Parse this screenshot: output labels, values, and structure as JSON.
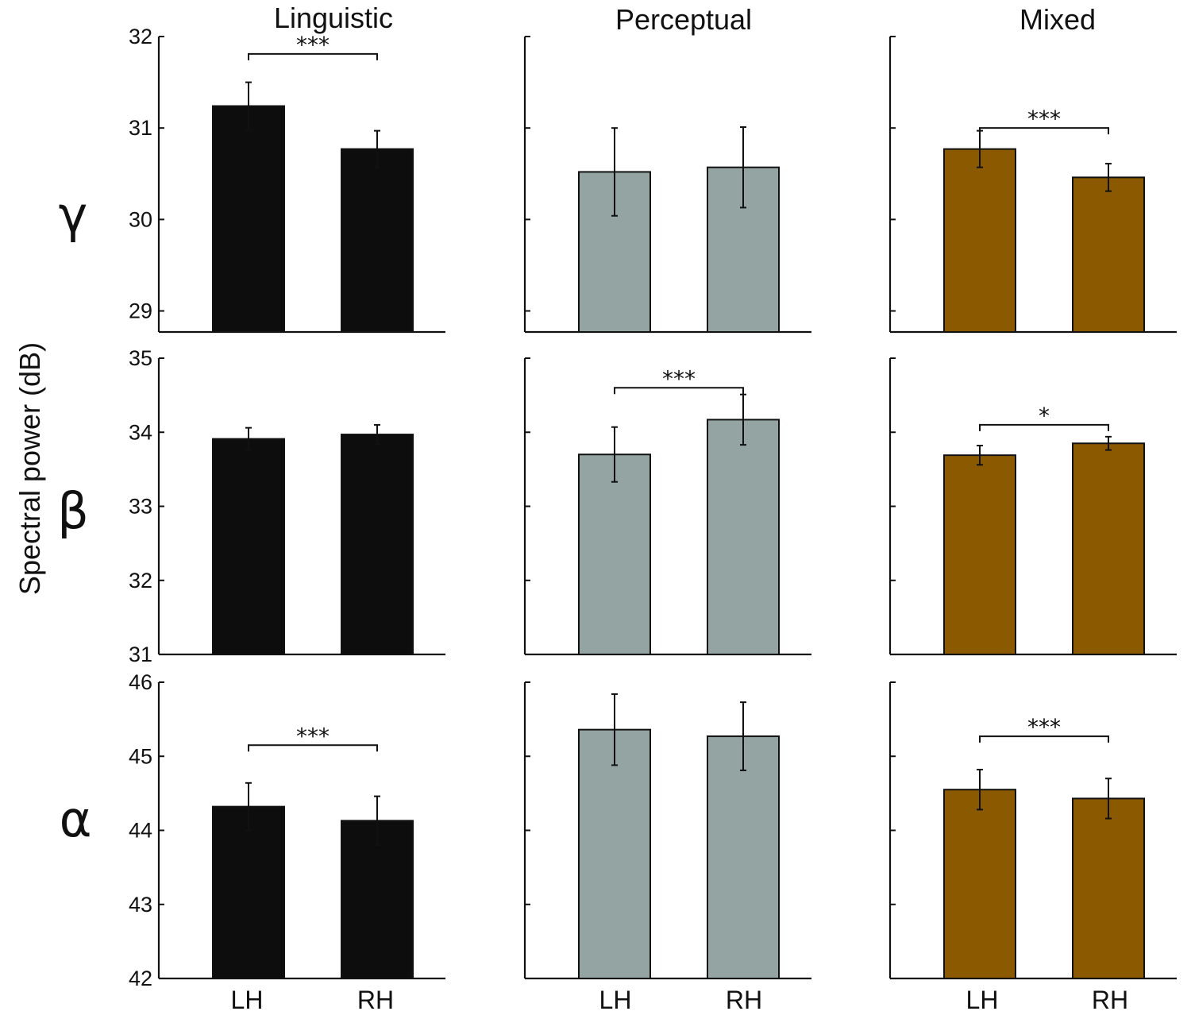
{
  "chart_data": {
    "type": "bar",
    "ylabel": "Spectral power (dB)",
    "columns": [
      "Linguistic",
      "Perceptual",
      "Mixed"
    ],
    "categories": [
      "LH",
      "RH"
    ],
    "colors": {
      "Linguistic": "#0d0d0d",
      "Perceptual": "#93a4a2",
      "Mixed": "#8b5a00"
    },
    "rows": [
      {
        "band": "γ",
        "ylim": [
          28.77,
          32
        ],
        "ticks": [
          29,
          30,
          31,
          32
        ],
        "tick_labels": [
          "29",
          "30",
          "31",
          "32"
        ],
        "panels": [
          {
            "column": "Linguistic",
            "values": [
              31.24,
              30.77
            ],
            "errors": [
              0.26,
              0.2
            ],
            "sig": "***",
            "sig_level": 31.81
          },
          {
            "column": "Perceptual",
            "values": [
              30.52,
              30.57
            ],
            "errors": [
              0.48,
              0.44
            ],
            "sig": "",
            "sig_level": null
          },
          {
            "column": "Mixed",
            "values": [
              30.77,
              30.46
            ],
            "errors": [
              0.2,
              0.15
            ],
            "sig": "***",
            "sig_level": 31.0
          }
        ]
      },
      {
        "band": "β",
        "ylim": [
          31,
          35
        ],
        "ticks": [
          31,
          32,
          33,
          34,
          35
        ],
        "tick_labels": [
          "31",
          "32",
          "33",
          "34",
          "35"
        ],
        "panels": [
          {
            "column": "Linguistic",
            "values": [
              33.91,
              33.97
            ],
            "errors": [
              0.15,
              0.13
            ],
            "sig": "",
            "sig_level": null
          },
          {
            "column": "Perceptual",
            "values": [
              33.7,
              34.17
            ],
            "errors": [
              0.37,
              0.34
            ],
            "sig": "***",
            "sig_level": 34.6
          },
          {
            "column": "Mixed",
            "values": [
              33.69,
              33.85
            ],
            "errors": [
              0.13,
              0.09
            ],
            "sig": "*",
            "sig_level": 34.1
          }
        ]
      },
      {
        "band": "α",
        "ylim": [
          42,
          46
        ],
        "ticks": [
          42,
          43,
          44,
          45,
          46
        ],
        "tick_labels": [
          "42",
          "43",
          "44",
          "45",
          "46"
        ],
        "panels": [
          {
            "column": "Linguistic",
            "values": [
              44.32,
              44.13
            ],
            "errors": [
              0.32,
              0.33
            ],
            "sig": "***",
            "sig_level": 45.15
          },
          {
            "column": "Perceptual",
            "values": [
              45.36,
              45.27
            ],
            "errors": [
              0.48,
              0.46
            ],
            "sig": "",
            "sig_level": null
          },
          {
            "column": "Mixed",
            "values": [
              44.55,
              44.43
            ],
            "errors": [
              0.27,
              0.27
            ],
            "sig": "***",
            "sig_level": 45.27
          }
        ]
      }
    ]
  }
}
